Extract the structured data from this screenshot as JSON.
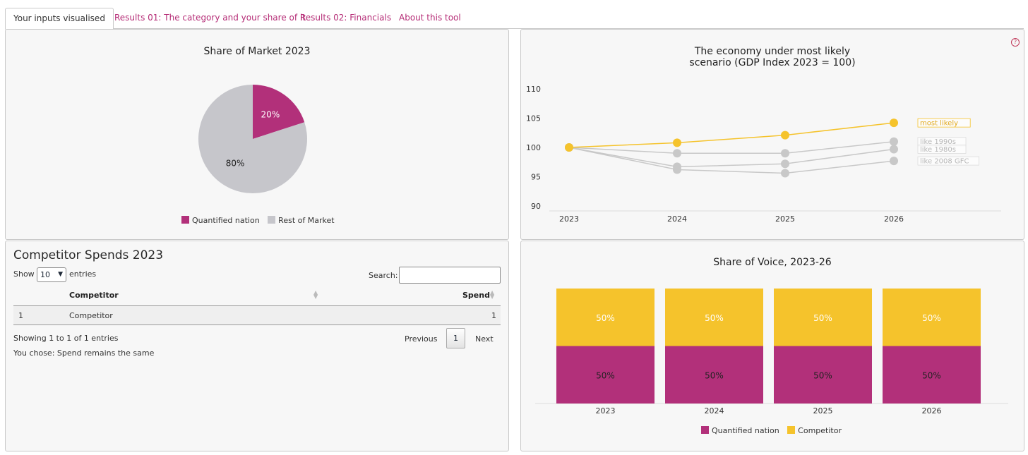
{
  "tabs": [
    {
      "label": "Your inputs visualised",
      "active": true
    },
    {
      "label": "Results 01: The category and your share of it",
      "active": false
    },
    {
      "label": "Results 02: Financials",
      "active": false
    },
    {
      "label": "About this tool",
      "active": false
    }
  ],
  "colors": {
    "magenta": "#b2307a",
    "grey": "#c6c6cb",
    "yellow": "#f5c32c",
    "line_grey": "#c8c8c8"
  },
  "market_share": {
    "title": "Share of  Market 2023",
    "chart_data": {
      "type": "pie",
      "slices": [
        {
          "label": "Quantified nation",
          "value": 20,
          "text": "20%"
        },
        {
          "label": "Rest of Market",
          "value": 80,
          "text": "80%"
        }
      ]
    },
    "legend": [
      "Quantified nation",
      "Rest of Market"
    ]
  },
  "economy": {
    "title_line1": "The economy under most likely",
    "title_line2": "scenario (GDP Index 2023 = 100)",
    "help_icon": "question-circle-icon",
    "help_glyph": "?",
    "chart_data": {
      "type": "line",
      "x": [
        "2023",
        "2024",
        "2025",
        "2026"
      ],
      "yticks": [
        "110",
        "105",
        "100",
        "95",
        "90"
      ],
      "ylim": [
        90,
        110
      ],
      "series": [
        {
          "name": "most likely",
          "values": [
            100,
            100.8,
            102.1,
            104.2
          ]
        },
        {
          "name": "like 1990s",
          "values": [
            100,
            99,
            99,
            101
          ]
        },
        {
          "name": "like 1980s",
          "values": [
            100,
            96.7,
            97.2,
            99.7
          ]
        },
        {
          "name": "like 2008 GFC",
          "values": [
            100,
            96.2,
            95.6,
            97.7
          ]
        }
      ]
    }
  },
  "competitors": {
    "title": "Competitor Spends 2023",
    "show_label": "Show",
    "entries_value": "10",
    "entries_label": "entries",
    "search_label": "Search:",
    "search_value": "",
    "columns": [
      "Competitor",
      "Spend"
    ],
    "rows": [
      {
        "index": "1",
        "competitor": "Competitor",
        "spend": "1"
      }
    ],
    "info": "Showing 1 to 1 of 1 entries",
    "prev": "Previous",
    "page": "1",
    "next": "Next",
    "choice": "You chose: Spend remains the same"
  },
  "voice": {
    "title": "Share of Voice, 2023-26",
    "chart_data": {
      "type": "bar",
      "stacked": true,
      "categories": [
        "2023",
        "2024",
        "2025",
        "2026"
      ],
      "series": [
        {
          "name": "Quantified nation",
          "values": [
            50,
            50,
            50,
            50
          ],
          "labels": [
            "50%",
            "50%",
            "50%",
            "50%"
          ]
        },
        {
          "name": "Competitor",
          "values": [
            50,
            50,
            50,
            50
          ],
          "labels": [
            "50%",
            "50%",
            "50%",
            "50%"
          ]
        }
      ]
    },
    "legend": [
      "Quantified nation",
      "Competitor"
    ]
  }
}
